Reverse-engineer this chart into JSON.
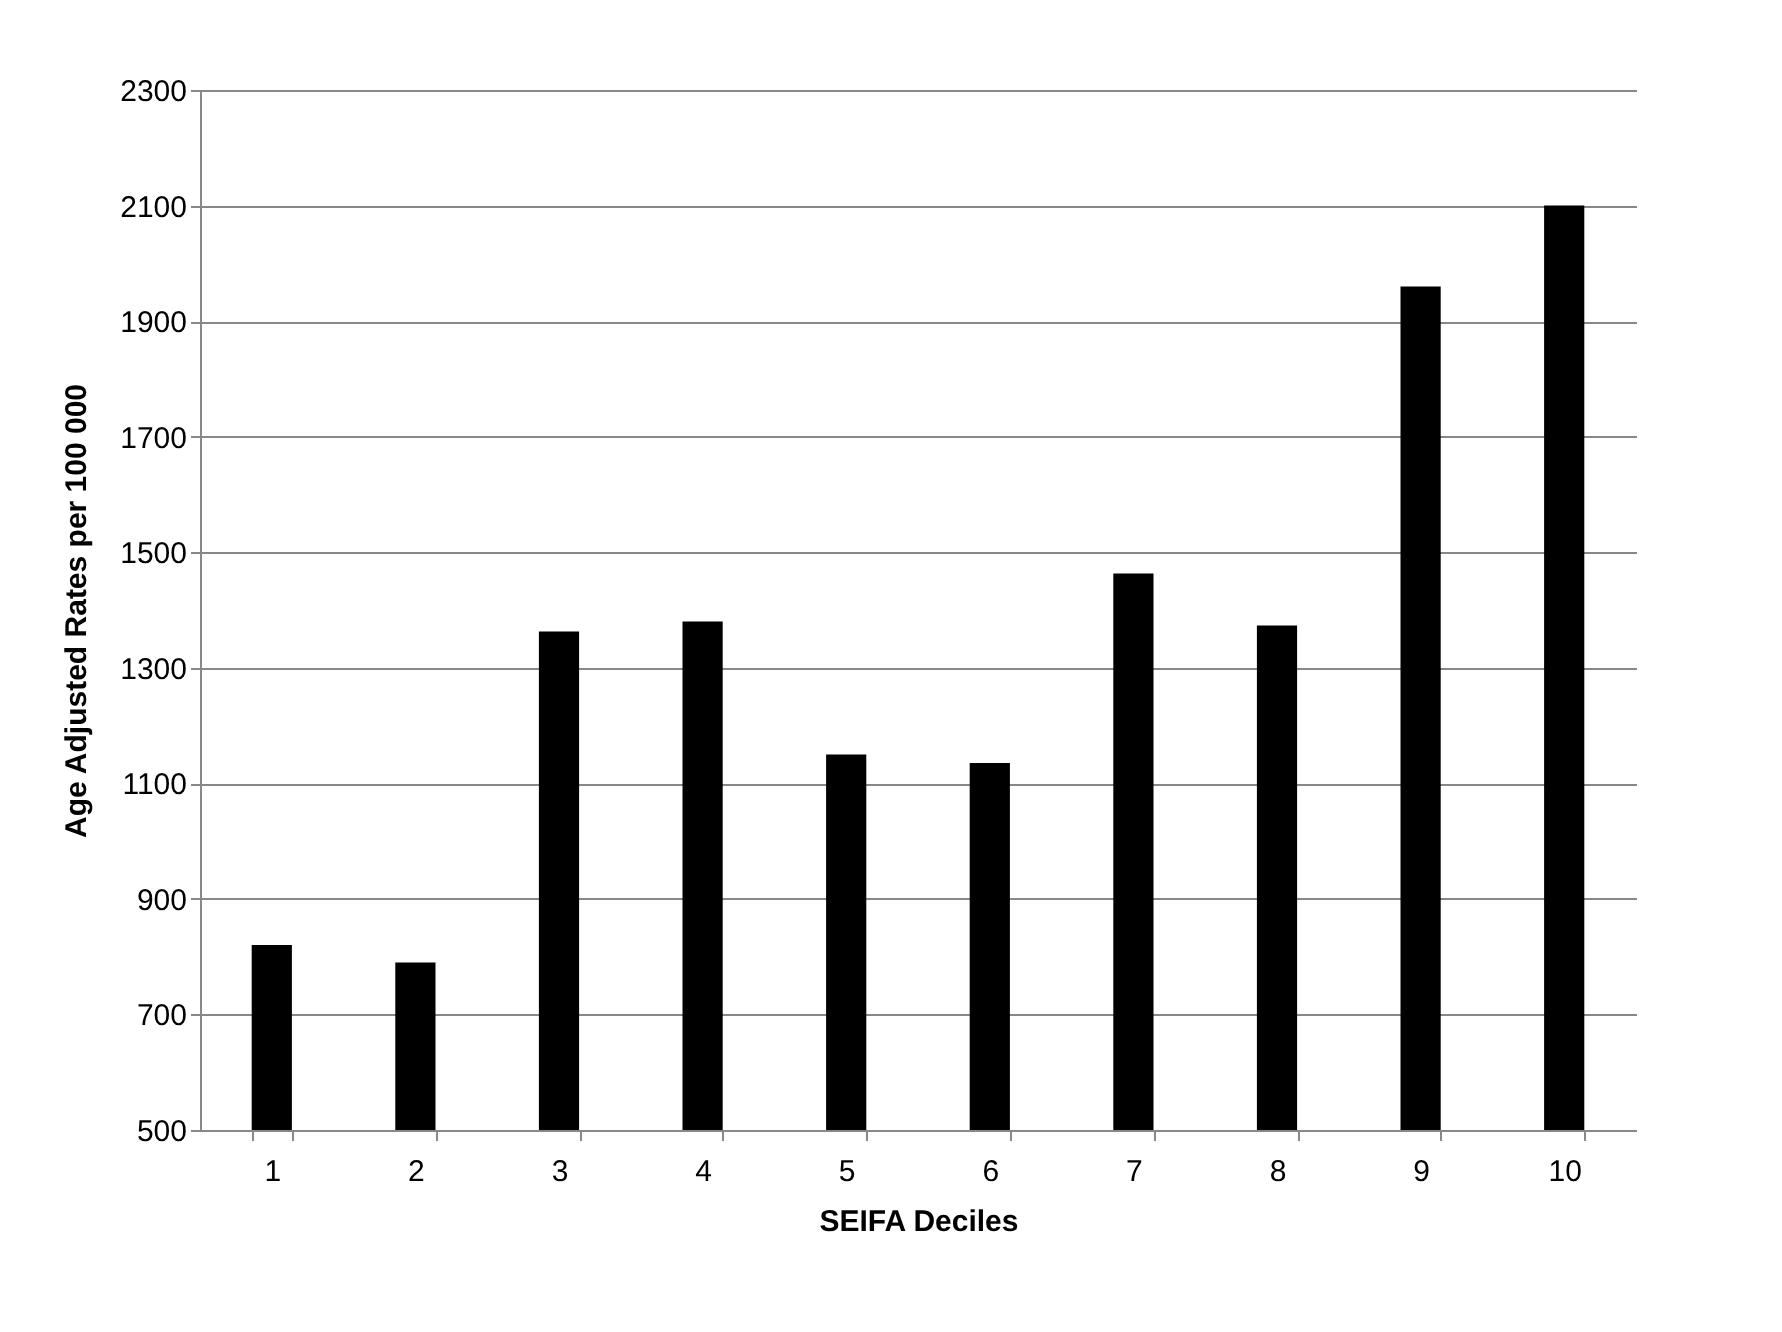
{
  "chart_data": {
    "type": "bar",
    "xlabel": "SEIFA Deciles",
    "ylabel": "Age Adjusted Rates per 100 000",
    "categories": [
      "1",
      "2",
      "3",
      "4",
      "5",
      "6",
      "7",
      "8",
      "9",
      "10"
    ],
    "values": [
      820,
      790,
      1363,
      1380,
      1150,
      1135,
      1463,
      1373,
      1960,
      2100
    ],
    "color": "#000000",
    "ylim": [
      500,
      2300
    ],
    "yticks": [
      500,
      700,
      900,
      1100,
      1300,
      1500,
      1700,
      1900,
      2100,
      2300
    ],
    "grid": "y"
  }
}
